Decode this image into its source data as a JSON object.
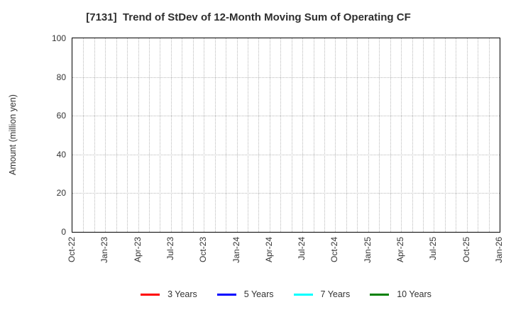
{
  "page": {
    "background": "#ffffff"
  },
  "colors": {
    "frame": "#000000",
    "grid": "#b9b9b9",
    "text": "#333333",
    "title": "#2e2e2e"
  },
  "chart_data": {
    "type": "line",
    "title": "[7131]  Trend of StDev of 12-Month Moving Sum of Operating CF",
    "xlabel": "",
    "ylabel": "Amount (million yen)",
    "ylim": [
      0,
      100
    ],
    "yticks": [
      0,
      20,
      40,
      60,
      80,
      100
    ],
    "xtick_labels": [
      "Oct-22",
      "Jan-23",
      "Apr-23",
      "Jul-23",
      "Oct-23",
      "Jan-24",
      "Apr-24",
      "Jul-24",
      "Oct-24",
      "Jan-25",
      "Apr-25",
      "Jul-25",
      "Oct-25",
      "Jan-26"
    ],
    "xtick_month_indices": [
      0,
      3,
      6,
      9,
      12,
      15,
      18,
      21,
      24,
      27,
      30,
      33,
      36,
      39
    ],
    "x_total_months": 39,
    "grid": {
      "style": "dotted",
      "vertical": "every month",
      "horizontal": "every 20 units"
    },
    "legend_position": "bottom-center",
    "series": [
      {
        "name": "3 Years",
        "color": "#ff0000",
        "x": [],
        "values": []
      },
      {
        "name": "5 Years",
        "color": "#0000ff",
        "x": [],
        "values": []
      },
      {
        "name": "7 Years",
        "color": "#00ffff",
        "x": [],
        "values": []
      },
      {
        "name": "10 Years",
        "color": "#008000",
        "x": [],
        "values": []
      }
    ],
    "note": "plot area is empty - no data lines are drawn for any series"
  }
}
